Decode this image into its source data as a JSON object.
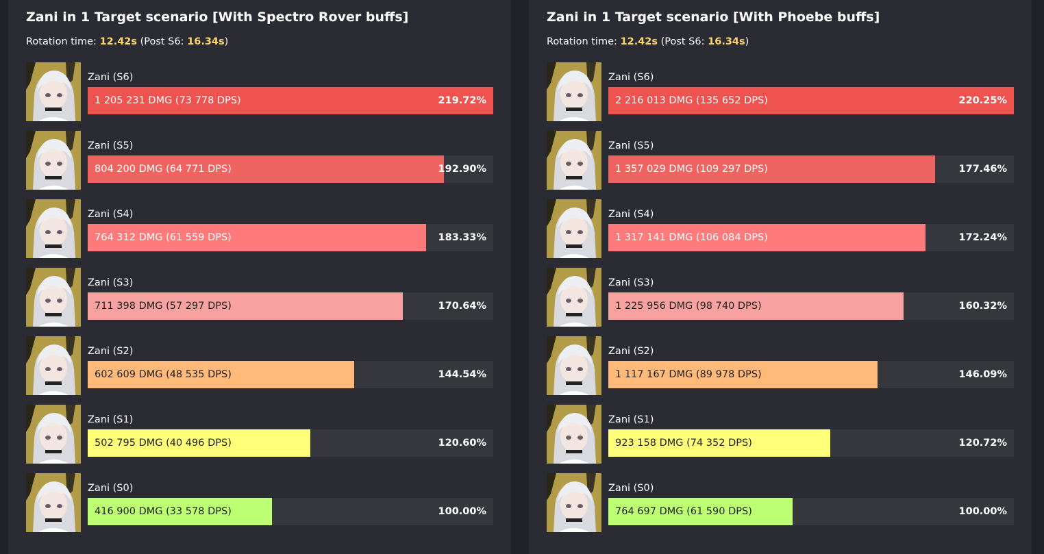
{
  "chart_data": [
    {
      "type": "bar",
      "title": "Zani in 1 Target scenario [With Spectro Rover buffs]",
      "rotation": {
        "label": "Rotation time: ",
        "time": "12.42s",
        "post_label": " (Post S6: ",
        "post_time": "16.34s",
        "close": ")"
      },
      "rows": [
        {
          "name": "Zani (S6)",
          "dmg": "1 205 231 DMG (73 778 DPS)",
          "pct_label": "219.72%",
          "value": 219.72,
          "color": "#ef5350"
        },
        {
          "name": "Zani (S5)",
          "dmg": "804 200 DMG (64 771 DPS)",
          "pct_label": "192.90%",
          "value": 192.9,
          "color": "#ef6460"
        },
        {
          "name": "Zani (S4)",
          "dmg": "764 312 DMG (61 559 DPS)",
          "pct_label": "183.33%",
          "value": 183.33,
          "color": "#ff7a7a"
        },
        {
          "name": "Zani (S3)",
          "dmg": "711 398 DMG (57 297 DPS)",
          "pct_label": "170.64%",
          "value": 170.64,
          "color": "#f7a1a1"
        },
        {
          "name": "Zani (S2)",
          "dmg": "602 609 DMG (48 535 DPS)",
          "pct_label": "144.54%",
          "value": 144.54,
          "color": "#ffb978"
        },
        {
          "name": "Zani (S1)",
          "dmg": "502 795 DMG (40 496 DPS)",
          "pct_label": "120.60%",
          "value": 120.6,
          "color": "#ffff7a"
        },
        {
          "name": "Zani (S0)",
          "dmg": "416 900 DMG (33 578 DPS)",
          "pct_label": "100.00%",
          "value": 100.0,
          "color": "#bcff72"
        }
      ]
    },
    {
      "type": "bar",
      "title": "Zani in 1 Target scenario [With Phoebe buffs]",
      "rotation": {
        "label": "Rotation time: ",
        "time": "12.42s",
        "post_label": " (Post S6: ",
        "post_time": "16.34s",
        "close": ")"
      },
      "rows": [
        {
          "name": "Zani (S6)",
          "dmg": "2 216 013 DMG (135 652 DPS)",
          "pct_label": "220.25%",
          "value": 220.25,
          "color": "#ef5350"
        },
        {
          "name": "Zani (S5)",
          "dmg": "1 357 029 DMG (109 297 DPS)",
          "pct_label": "177.46%",
          "value": 177.46,
          "color": "#ef6460"
        },
        {
          "name": "Zani (S4)",
          "dmg": "1 317 141 DMG (106 084 DPS)",
          "pct_label": "172.24%",
          "value": 172.24,
          "color": "#ff7a7a"
        },
        {
          "name": "Zani (S3)",
          "dmg": "1 225 956 DMG (98 740 DPS)",
          "pct_label": "160.32%",
          "value": 160.32,
          "color": "#f7a1a1"
        },
        {
          "name": "Zani (S2)",
          "dmg": "1 117 167 DMG (89 978 DPS)",
          "pct_label": "146.09%",
          "value": 146.09,
          "color": "#ffb978"
        },
        {
          "name": "Zani (S1)",
          "dmg": "923 158 DMG (74 352 DPS)",
          "pct_label": "120.72%",
          "value": 120.72,
          "color": "#ffff7a"
        },
        {
          "name": "Zani (S0)",
          "dmg": "764 697 DMG (61 590 DPS)",
          "pct_label": "100.00%",
          "value": 100.0,
          "color": "#bcff72"
        }
      ]
    }
  ]
}
